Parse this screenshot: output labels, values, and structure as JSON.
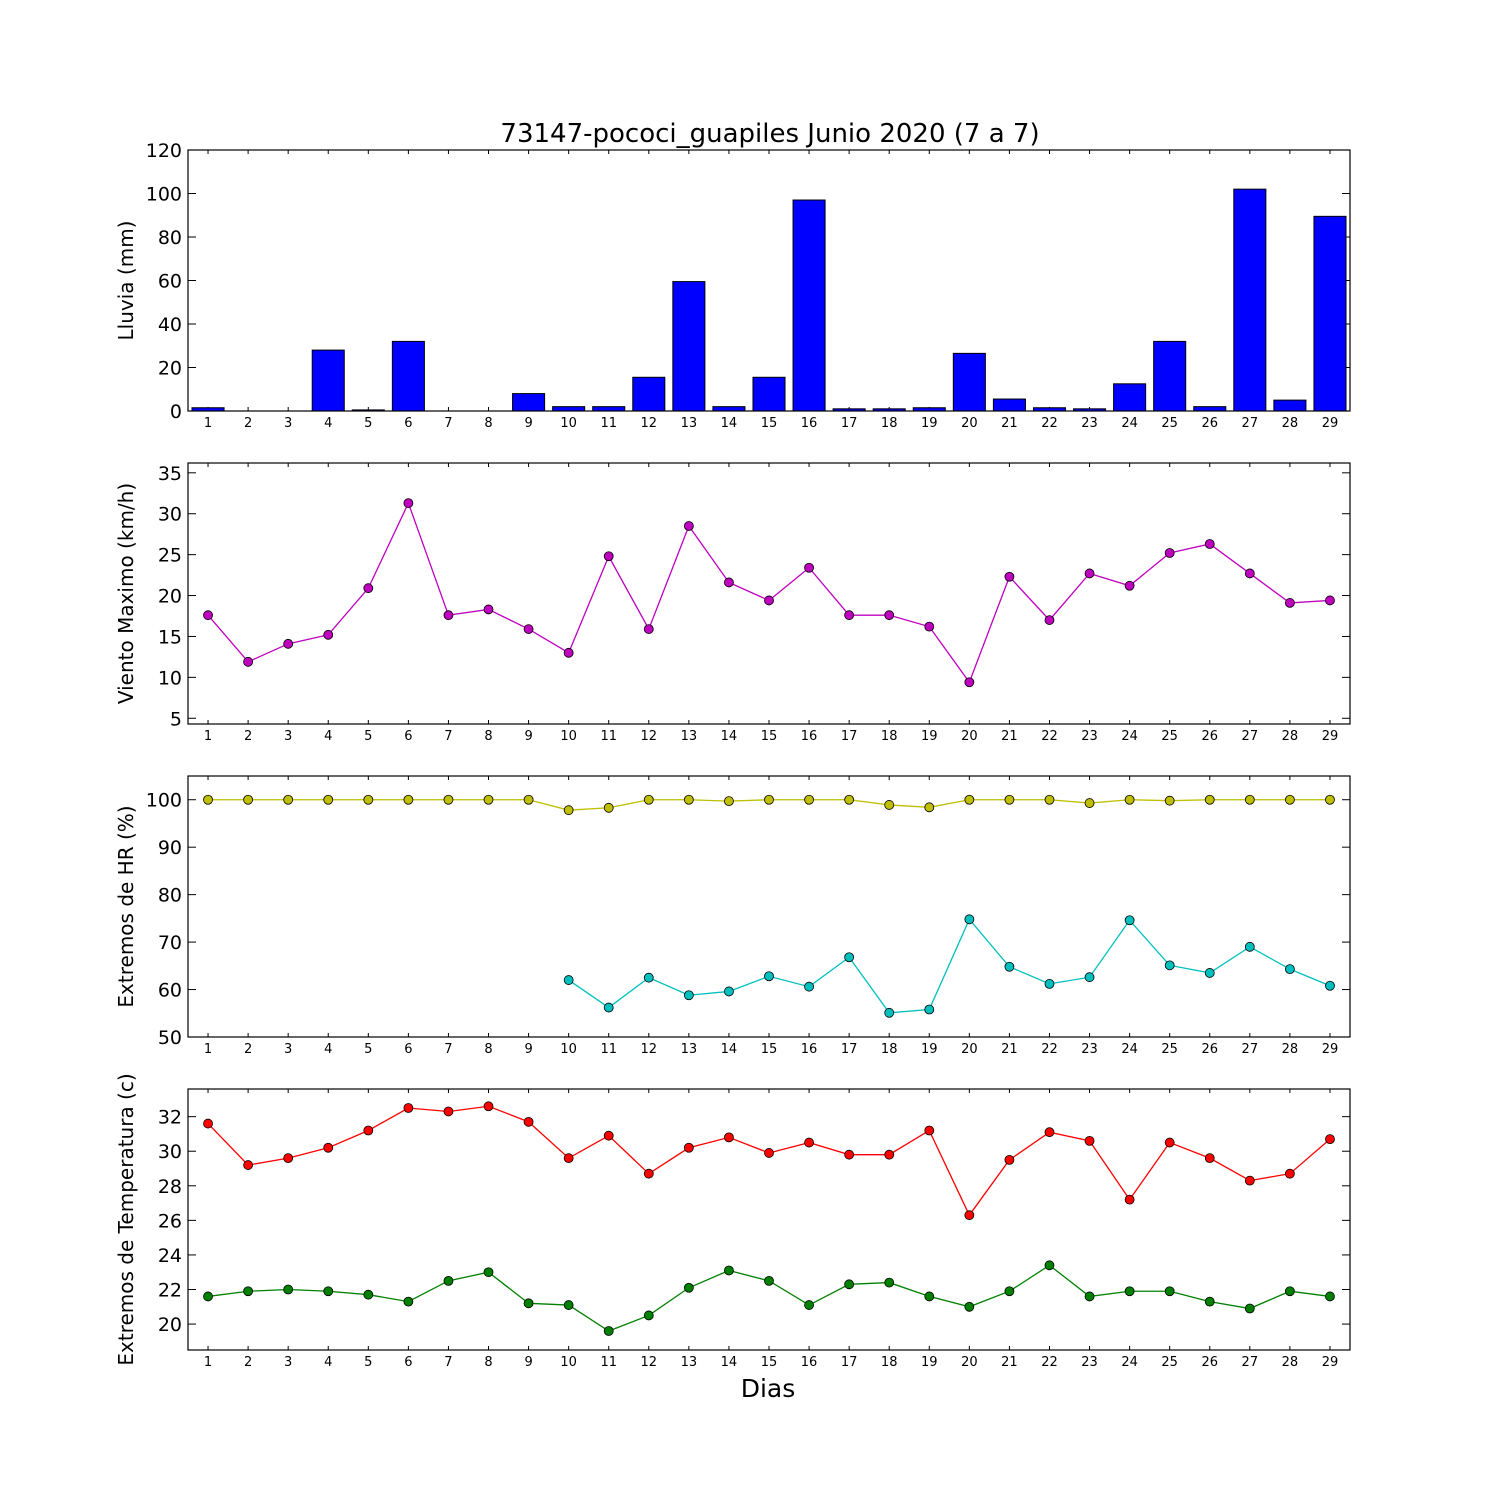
{
  "title": "73147-pococi_guapiles Junio 2020  (7 a 7)",
  "xlabel": "Dias",
  "days": [
    1,
    2,
    3,
    4,
    5,
    6,
    7,
    8,
    9,
    10,
    11,
    12,
    13,
    14,
    15,
    16,
    17,
    18,
    19,
    20,
    21,
    22,
    23,
    24,
    25,
    26,
    27,
    28,
    29
  ],
  "chart_data": [
    {
      "type": "bar",
      "ylabel": "Lluvia (mm)",
      "ylim": [
        0,
        120
      ],
      "yticks": [
        0,
        20,
        40,
        60,
        80,
        100,
        120
      ],
      "series": [
        {
          "color": "#0000ff",
          "values": [
            1.5,
            0,
            0,
            28,
            0.5,
            32,
            0,
            0,
            8,
            2,
            2,
            15.5,
            59.5,
            2,
            15.5,
            97,
            1,
            1,
            1.5,
            26.5,
            5.5,
            1.5,
            1,
            12.5,
            32,
            2,
            102,
            5,
            89.5
          ]
        }
      ]
    },
    {
      "type": "line",
      "ylabel": "Viento Maximo (km/h)",
      "ylim": [
        4.3,
        36.2
      ],
      "yticks": [
        5,
        10,
        15,
        20,
        25,
        30,
        35
      ],
      "series": [
        {
          "color": "#bf00bf",
          "values": [
            17.6,
            11.9,
            14.1,
            15.2,
            20.9,
            31.3,
            17.6,
            18.3,
            15.9,
            13,
            24.8,
            15.9,
            28.5,
            21.6,
            19.4,
            23.4,
            17.6,
            17.6,
            16.2,
            9.4,
            22.3,
            17,
            22.7,
            21.2,
            25.2,
            26.3,
            22.7,
            19.1,
            19.4
          ]
        }
      ]
    },
    {
      "type": "line",
      "ylabel": "Extremos de HR (%)",
      "ylim": [
        50,
        105
      ],
      "yticks": [
        50,
        60,
        70,
        80,
        90,
        100
      ],
      "series": [
        {
          "color": "#bfbf00",
          "values": [
            100,
            100,
            100,
            100,
            100,
            100,
            100,
            100,
            100,
            97.8,
            98.3,
            100,
            100,
            99.7,
            100,
            100,
            100,
            98.9,
            98.4,
            100,
            100,
            100,
            99.3,
            100,
            99.8,
            100,
            100,
            100,
            100
          ]
        },
        {
          "color": "#00bfbf",
          "values": [
            null,
            null,
            null,
            null,
            null,
            null,
            null,
            null,
            null,
            62,
            56.2,
            62.5,
            58.8,
            59.6,
            62.8,
            60.6,
            66.8,
            55.1,
            55.8,
            74.8,
            64.8,
            61.2,
            62.6,
            74.6,
            65.1,
            63.5,
            69,
            64.3,
            60.8
          ]
        }
      ]
    },
    {
      "type": "line",
      "ylabel": "Extremos de Temperatura (c)",
      "ylim": [
        18.5,
        33.6
      ],
      "yticks": [
        20,
        22,
        24,
        26,
        28,
        30,
        32
      ],
      "series": [
        {
          "color": "#ff0000",
          "values": [
            31.6,
            29.2,
            29.6,
            30.2,
            31.2,
            32.5,
            32.3,
            32.6,
            31.7,
            29.6,
            30.9,
            28.7,
            30.2,
            30.8,
            29.9,
            30.5,
            29.8,
            29.8,
            31.2,
            26.3,
            29.5,
            31.1,
            30.6,
            27.2,
            30.5,
            29.6,
            28.3,
            28.7,
            30.7
          ]
        },
        {
          "color": "#008000",
          "values": [
            21.6,
            21.9,
            22,
            21.9,
            21.7,
            21.3,
            22.5,
            23,
            21.2,
            21.1,
            19.6,
            20.5,
            22.1,
            23.1,
            22.5,
            21.1,
            22.3,
            22.4,
            21.6,
            21,
            21.9,
            23.4,
            21.6,
            21.9,
            21.9,
            21.3,
            20.9,
            21.9,
            21.6
          ]
        }
      ]
    }
  ]
}
